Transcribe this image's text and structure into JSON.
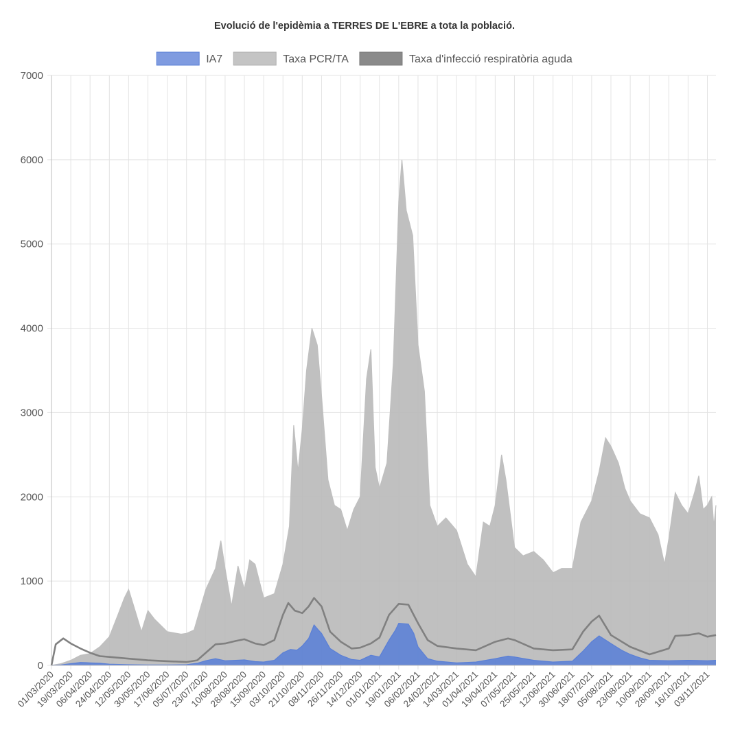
{
  "chart_data": {
    "type": "area",
    "title": "Evolució de l'epidèmia a TERRES DE L'EBRE a tota la població.",
    "legend_position": "top",
    "grid": true,
    "ylim": [
      0,
      7000
    ],
    "y_ticks": [
      "0",
      "1000",
      "2000",
      "3000",
      "4000",
      "5000",
      "6000",
      "7000"
    ],
    "x_start": "01/03/2020",
    "x_end": "11/11/2021",
    "x_ticks": [
      "01/03/2020",
      "19/03/2020",
      "06/04/2020",
      "24/04/2020",
      "12/05/2020",
      "30/05/2020",
      "17/06/2020",
      "05/07/2020",
      "23/07/2020",
      "10/08/2020",
      "28/08/2020",
      "15/09/2020",
      "03/10/2020",
      "21/10/2020",
      "08/11/2020",
      "26/11/2020",
      "14/12/2020",
      "01/01/2021",
      "19/01/2021",
      "06/02/2021",
      "24/02/2021",
      "14/03/2021",
      "01/04/2021",
      "19/04/2021",
      "07/05/2021",
      "25/05/2021",
      "12/06/2021",
      "30/06/2021",
      "18/07/2021",
      "05/08/2021",
      "23/08/2021",
      "10/09/2021",
      "28/09/2021",
      "16/10/2021",
      "03/11/2021"
    ],
    "series": [
      {
        "name": "IA7",
        "color": "#5a7fd6",
        "fill": "rgba(90, 127, 214, 0.88)",
        "points": [
          [
            "01/03/2020",
            0
          ],
          [
            "10/03/2020",
            5
          ],
          [
            "19/03/2020",
            20
          ],
          [
            "28/03/2020",
            35
          ],
          [
            "06/04/2020",
            30
          ],
          [
            "15/04/2020",
            25
          ],
          [
            "24/04/2020",
            15
          ],
          [
            "12/05/2020",
            8
          ],
          [
            "30/05/2020",
            5
          ],
          [
            "17/06/2020",
            5
          ],
          [
            "05/07/2020",
            8
          ],
          [
            "15/07/2020",
            25
          ],
          [
            "23/07/2020",
            55
          ],
          [
            "01/08/2020",
            80
          ],
          [
            "10/08/2020",
            55
          ],
          [
            "20/08/2020",
            60
          ],
          [
            "28/08/2020",
            65
          ],
          [
            "07/09/2020",
            45
          ],
          [
            "15/09/2020",
            40
          ],
          [
            "25/09/2020",
            60
          ],
          [
            "03/10/2020",
            150
          ],
          [
            "10/10/2020",
            190
          ],
          [
            "16/10/2020",
            180
          ],
          [
            "21/10/2020",
            230
          ],
          [
            "27/10/2020",
            320
          ],
          [
            "01/11/2020",
            480
          ],
          [
            "05/11/2020",
            420
          ],
          [
            "08/11/2020",
            380
          ],
          [
            "16/11/2020",
            200
          ],
          [
            "26/11/2020",
            120
          ],
          [
            "06/12/2020",
            70
          ],
          [
            "14/12/2020",
            60
          ],
          [
            "24/12/2020",
            120
          ],
          [
            "01/01/2021",
            100
          ],
          [
            "10/01/2021",
            300
          ],
          [
            "16/01/2021",
            420
          ],
          [
            "19/01/2021",
            500
          ],
          [
            "28/01/2021",
            490
          ],
          [
            "02/02/2021",
            380
          ],
          [
            "06/02/2021",
            220
          ],
          [
            "15/02/2021",
            80
          ],
          [
            "24/02/2021",
            50
          ],
          [
            "14/03/2021",
            30
          ],
          [
            "01/04/2021",
            40
          ],
          [
            "19/04/2021",
            80
          ],
          [
            "01/05/2021",
            110
          ],
          [
            "07/05/2021",
            100
          ],
          [
            "25/05/2021",
            60
          ],
          [
            "12/06/2021",
            40
          ],
          [
            "30/06/2021",
            50
          ],
          [
            "10/07/2021",
            170
          ],
          [
            "18/07/2021",
            280
          ],
          [
            "25/07/2021",
            350
          ],
          [
            "05/08/2021",
            260
          ],
          [
            "15/08/2021",
            180
          ],
          [
            "23/08/2021",
            130
          ],
          [
            "01/09/2021",
            90
          ],
          [
            "10/09/2021",
            60
          ],
          [
            "28/09/2021",
            55
          ],
          [
            "16/10/2021",
            60
          ],
          [
            "03/11/2021",
            55
          ],
          [
            "11/11/2021",
            60
          ]
        ]
      },
      {
        "name": "Taxa PCR/TA",
        "color": "#bfbfbf",
        "fill": "rgba(185, 185, 185, 0.9)",
        "points": [
          [
            "01/03/2020",
            0
          ],
          [
            "10/03/2020",
            20
          ],
          [
            "19/03/2020",
            60
          ],
          [
            "28/03/2020",
            120
          ],
          [
            "06/04/2020",
            140
          ],
          [
            "15/04/2020",
            220
          ],
          [
            "24/04/2020",
            340
          ],
          [
            "02/05/2020",
            600
          ],
          [
            "08/05/2020",
            800
          ],
          [
            "12/05/2020",
            900
          ],
          [
            "18/05/2020",
            650
          ],
          [
            "24/05/2020",
            400
          ],
          [
            "30/05/2020",
            650
          ],
          [
            "05/06/2020",
            550
          ],
          [
            "17/06/2020",
            400
          ],
          [
            "30/06/2020",
            370
          ],
          [
            "05/07/2020",
            380
          ],
          [
            "12/07/2020",
            420
          ],
          [
            "23/07/2020",
            900
          ],
          [
            "01/08/2020",
            1150
          ],
          [
            "06/08/2020",
            1480
          ],
          [
            "10/08/2020",
            1150
          ],
          [
            "16/08/2020",
            700
          ],
          [
            "22/08/2020",
            1180
          ],
          [
            "28/08/2020",
            900
          ],
          [
            "02/09/2020",
            1250
          ],
          [
            "07/09/2020",
            1200
          ],
          [
            "15/09/2020",
            800
          ],
          [
            "25/09/2020",
            850
          ],
          [
            "03/10/2020",
            1200
          ],
          [
            "09/10/2020",
            1650
          ],
          [
            "13/10/2020",
            2850
          ],
          [
            "17/10/2020",
            2300
          ],
          [
            "21/10/2020",
            2800
          ],
          [
            "25/10/2020",
            3500
          ],
          [
            "30/10/2020",
            4000
          ],
          [
            "04/11/2020",
            3800
          ],
          [
            "08/11/2020",
            3200
          ],
          [
            "14/11/2020",
            2200
          ],
          [
            "20/11/2020",
            1900
          ],
          [
            "26/11/2020",
            1850
          ],
          [
            "02/12/2020",
            1600
          ],
          [
            "08/12/2020",
            1850
          ],
          [
            "14/12/2020",
            2000
          ],
          [
            "20/12/2020",
            3400
          ],
          [
            "24/12/2020",
            3750
          ],
          [
            "28/12/2020",
            2350
          ],
          [
            "01/01/2021",
            2100
          ],
          [
            "08/01/2021",
            2400
          ],
          [
            "14/01/2021",
            3600
          ],
          [
            "19/01/2021",
            5500
          ],
          [
            "22/01/2021",
            6000
          ],
          [
            "26/01/2021",
            5400
          ],
          [
            "01/02/2021",
            5100
          ],
          [
            "06/02/2021",
            3800
          ],
          [
            "12/02/2021",
            3250
          ],
          [
            "17/02/2021",
            1900
          ],
          [
            "24/02/2021",
            1650
          ],
          [
            "04/03/2021",
            1750
          ],
          [
            "14/03/2021",
            1600
          ],
          [
            "24/03/2021",
            1200
          ],
          [
            "01/04/2021",
            1050
          ],
          [
            "08/04/2021",
            1700
          ],
          [
            "14/04/2021",
            1650
          ],
          [
            "19/04/2021",
            1900
          ],
          [
            "25/04/2021",
            2500
          ],
          [
            "29/04/2021",
            2200
          ],
          [
            "07/05/2021",
            1400
          ],
          [
            "15/05/2021",
            1300
          ],
          [
            "25/05/2021",
            1350
          ],
          [
            "03/06/2021",
            1250
          ],
          [
            "12/06/2021",
            1100
          ],
          [
            "20/06/2021",
            1150
          ],
          [
            "30/06/2021",
            1150
          ],
          [
            "08/07/2021",
            1700
          ],
          [
            "18/07/2021",
            1950
          ],
          [
            "25/07/2021",
            2300
          ],
          [
            "31/07/2021",
            2700
          ],
          [
            "05/08/2021",
            2600
          ],
          [
            "12/08/2021",
            2400
          ],
          [
            "18/08/2021",
            2100
          ],
          [
            "23/08/2021",
            1950
          ],
          [
            "01/09/2021",
            1800
          ],
          [
            "10/09/2021",
            1750
          ],
          [
            "18/09/2021",
            1550
          ],
          [
            "24/09/2021",
            1200
          ],
          [
            "28/09/2021",
            1500
          ],
          [
            "04/10/2021",
            2050
          ],
          [
            "10/10/2021",
            1900
          ],
          [
            "16/10/2021",
            1800
          ],
          [
            "22/10/2021",
            2050
          ],
          [
            "26/10/2021",
            2250
          ],
          [
            "30/10/2021",
            1850
          ],
          [
            "03/11/2021",
            1900
          ],
          [
            "07/11/2021",
            2000
          ],
          [
            "09/11/2021",
            1650
          ],
          [
            "11/11/2021",
            1900
          ]
        ]
      },
      {
        "name": "Taxa d'infecció respiratòria aguda",
        "color": "#808080",
        "fill": "none",
        "points": [
          [
            "01/03/2020",
            0
          ],
          [
            "05/03/2020",
            250
          ],
          [
            "12/03/2020",
            320
          ],
          [
            "19/03/2020",
            260
          ],
          [
            "28/03/2020",
            200
          ],
          [
            "06/04/2020",
            150
          ],
          [
            "15/04/2020",
            110
          ],
          [
            "24/04/2020",
            100
          ],
          [
            "12/05/2020",
            80
          ],
          [
            "30/05/2020",
            60
          ],
          [
            "17/06/2020",
            50
          ],
          [
            "05/07/2020",
            40
          ],
          [
            "15/07/2020",
            60
          ],
          [
            "23/07/2020",
            150
          ],
          [
            "01/08/2020",
            250
          ],
          [
            "10/08/2020",
            260
          ],
          [
            "20/08/2020",
            290
          ],
          [
            "28/08/2020",
            310
          ],
          [
            "07/09/2020",
            260
          ],
          [
            "15/09/2020",
            240
          ],
          [
            "25/09/2020",
            300
          ],
          [
            "03/10/2020",
            600
          ],
          [
            "08/10/2020",
            740
          ],
          [
            "14/10/2020",
            650
          ],
          [
            "21/10/2020",
            620
          ],
          [
            "27/10/2020",
            700
          ],
          [
            "01/11/2020",
            800
          ],
          [
            "08/11/2020",
            700
          ],
          [
            "16/11/2020",
            400
          ],
          [
            "26/11/2020",
            280
          ],
          [
            "06/12/2020",
            200
          ],
          [
            "14/12/2020",
            210
          ],
          [
            "24/12/2020",
            260
          ],
          [
            "01/01/2021",
            330
          ],
          [
            "10/01/2021",
            600
          ],
          [
            "19/01/2021",
            730
          ],
          [
            "28/01/2021",
            720
          ],
          [
            "06/02/2021",
            500
          ],
          [
            "15/02/2021",
            300
          ],
          [
            "24/02/2021",
            230
          ],
          [
            "14/03/2021",
            200
          ],
          [
            "01/04/2021",
            180
          ],
          [
            "19/04/2021",
            280
          ],
          [
            "01/05/2021",
            320
          ],
          [
            "07/05/2021",
            300
          ],
          [
            "25/05/2021",
            200
          ],
          [
            "12/06/2021",
            180
          ],
          [
            "30/06/2021",
            190
          ],
          [
            "10/07/2021",
            400
          ],
          [
            "18/07/2021",
            520
          ],
          [
            "25/07/2021",
            590
          ],
          [
            "05/08/2021",
            360
          ],
          [
            "23/08/2021",
            220
          ],
          [
            "10/09/2021",
            130
          ],
          [
            "28/09/2021",
            200
          ],
          [
            "04/10/2021",
            350
          ],
          [
            "16/10/2021",
            360
          ],
          [
            "26/10/2021",
            380
          ],
          [
            "03/11/2021",
            340
          ],
          [
            "11/11/2021",
            360
          ]
        ]
      }
    ]
  }
}
